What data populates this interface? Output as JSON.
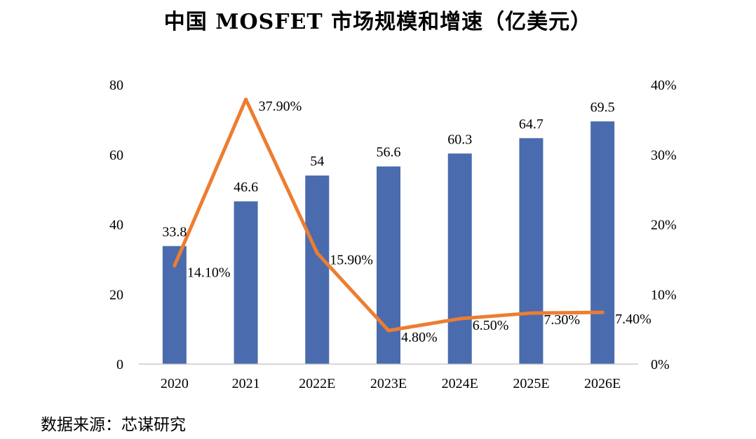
{
  "title": "中国 MOSFET 市场规模和增速（亿美元）",
  "source": "数据来源：芯谋研究",
  "colors": {
    "bar": "#4A6BAD",
    "line": "#ED7D31",
    "axis": "#BFBFBF"
  },
  "chart_data": {
    "type": "bar",
    "title": "中国 MOSFET 市场规模和增速（亿美元）",
    "categories": [
      "2020",
      "2021",
      "2022E",
      "2023E",
      "2024E",
      "2025E",
      "2026E"
    ],
    "series": [
      {
        "type": "bar",
        "axis": "left",
        "values": [
          33.8,
          46.6,
          54,
          56.6,
          60.3,
          64.7,
          69.5
        ],
        "labels": [
          "33.8",
          "46.6",
          "54",
          "56.6",
          "60.3",
          "64.7",
          "69.5"
        ]
      },
      {
        "type": "line",
        "axis": "right",
        "values": [
          14.1,
          37.9,
          15.9,
          4.8,
          6.5,
          7.3,
          7.4
        ],
        "labels": [
          "14.10%",
          "37.90%",
          "15.90%",
          "4.80%",
          "6.50%",
          "7.30%",
          "7.40%"
        ]
      }
    ],
    "ylim": [
      0,
      80
    ],
    "y_ticks": [
      "0",
      "20",
      "40",
      "60",
      "80"
    ],
    "y2lim": [
      0,
      40
    ],
    "y2_ticks": [
      "0%",
      "10%",
      "20%",
      "30%",
      "40%"
    ],
    "xlabel": "",
    "ylabel": "",
    "grid": false,
    "legend": "none"
  }
}
